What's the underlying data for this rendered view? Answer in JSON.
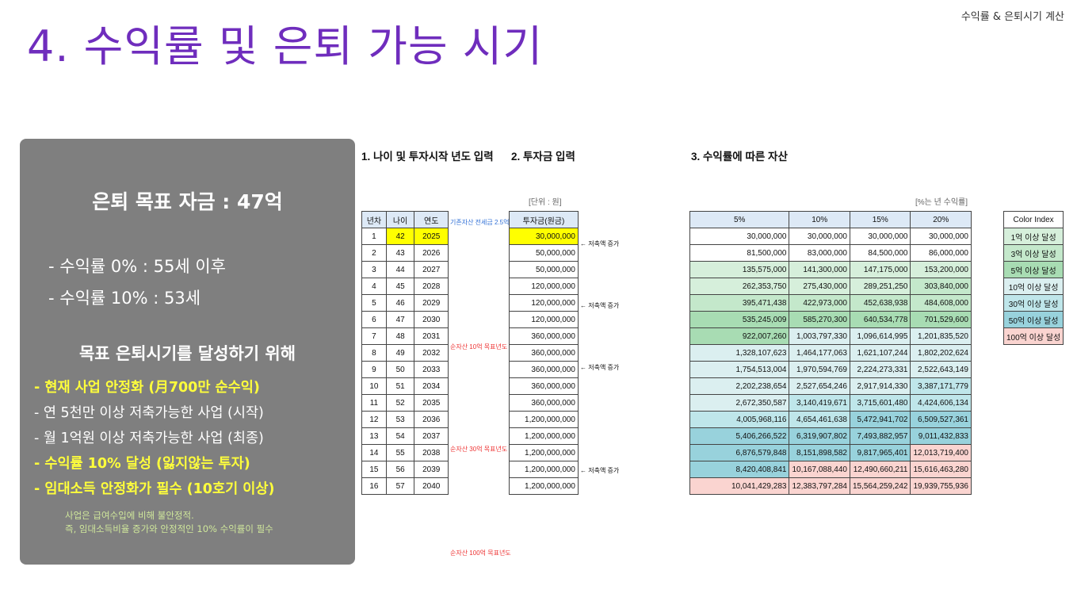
{
  "header": {
    "top_right": "수익률 & 은퇴시기 계산",
    "title": "4. 수익률 및 은퇴 가능 시기"
  },
  "panel": {
    "goal": "은퇴 목표 자금 : 47억",
    "rates": [
      "- 수익률   0% : 55세 이후",
      "- 수익률 10% : 53세"
    ],
    "subheading": "목표 은퇴시기를 달성하기 위해",
    "bullets": [
      {
        "text": "- 현재 사업 안정화 (月700만 순수익)",
        "highlight": true
      },
      {
        "text": "- 연 5천만 이상 저축가능한 사업 (시작)",
        "highlight": false
      },
      {
        "text": "- 월 1억원 이상 저축가능한 사업 (최종)",
        "highlight": false
      },
      {
        "text": "- 수익률 10% 달성 (잃지않는 투자)",
        "highlight": true
      },
      {
        "text": "- 임대소득 안정화가 필수 (10호기 이상)",
        "highlight": true
      }
    ],
    "notes": [
      "사업은 급여수입에 비해 불안정적.",
      "즉, 임대소득비율 증가와 안정적인 10% 수익률이 필수"
    ]
  },
  "sections": {
    "s1": "1. 나이 및 투자시작 년도 입력",
    "s2": "2. 투자금 입력",
    "s3": "3. 수익률에 따른 자산",
    "unit1": "[단위 : 원]",
    "unit2": "[%는 년 수익률]"
  },
  "left_table": {
    "headers": [
      "년차",
      "나이",
      "연도"
    ],
    "rows": [
      [
        "1",
        "42",
        "2025"
      ],
      [
        "2",
        "43",
        "2026"
      ],
      [
        "3",
        "44",
        "2027"
      ],
      [
        "4",
        "45",
        "2028"
      ],
      [
        "5",
        "46",
        "2029"
      ],
      [
        "6",
        "47",
        "2030"
      ],
      [
        "7",
        "48",
        "2031"
      ],
      [
        "8",
        "49",
        "2032"
      ],
      [
        "9",
        "50",
        "2033"
      ],
      [
        "10",
        "51",
        "2034"
      ],
      [
        "11",
        "52",
        "2035"
      ],
      [
        "12",
        "53",
        "2036"
      ],
      [
        "13",
        "54",
        "2037"
      ],
      [
        "14",
        "55",
        "2038"
      ],
      [
        "15",
        "56",
        "2039"
      ],
      [
        "16",
        "57",
        "2040"
      ]
    ]
  },
  "notes_col": {
    "row1": "기존자산 전세금 2.5억",
    "row6": "순자산 10억 목표년도",
    "row11": "순자산 30억 목표년도",
    "row16": "순자산 100억 목표년도"
  },
  "invest_table": {
    "header": "투자금(원금)",
    "values": [
      "30,000,000",
      "50,000,000",
      "50,000,000",
      "120,000,000",
      "120,000,000",
      "120,000,000",
      "360,000,000",
      "360,000,000",
      "360,000,000",
      "360,000,000",
      "360,000,000",
      "1,200,000,000",
      "1,200,000,000",
      "1,200,000,000",
      "1,200,000,000",
      "1,200,000,000"
    ]
  },
  "increase_note": "← 저축액 증가",
  "asset_table": {
    "headers": [
      "5%",
      "10%",
      "15%",
      "20%"
    ],
    "rows": [
      [
        "30,000,000",
        "30,000,000",
        "30,000,000",
        "30,000,000"
      ],
      [
        "81,500,000",
        "83,000,000",
        "84,500,000",
        "86,000,000"
      ],
      [
        "135,575,000",
        "141,300,000",
        "147,175,000",
        "153,200,000"
      ],
      [
        "262,353,750",
        "275,430,000",
        "289,251,250",
        "303,840,000"
      ],
      [
        "395,471,438",
        "422,973,000",
        "452,638,938",
        "484,608,000"
      ],
      [
        "535,245,009",
        "585,270,300",
        "640,534,778",
        "701,529,600"
      ],
      [
        "922,007,260",
        "1,003,797,330",
        "1,096,614,995",
        "1,201,835,520"
      ],
      [
        "1,328,107,623",
        "1,464,177,063",
        "1,621,107,244",
        "1,802,202,624"
      ],
      [
        "1,754,513,004",
        "1,970,594,769",
        "2,224,273,331",
        "2,522,643,149"
      ],
      [
        "2,202,238,654",
        "2,527,654,246",
        "2,917,914,330",
        "3,387,171,779"
      ],
      [
        "2,672,350,587",
        "3,140,419,671",
        "3,715,601,480",
        "4,424,606,134"
      ],
      [
        "4,005,968,116",
        "4,654,461,638",
        "5,472,941,702",
        "6,509,527,361"
      ],
      [
        "5,406,266,522",
        "6,319,907,802",
        "7,493,882,957",
        "9,011,432,833"
      ],
      [
        "6,876,579,848",
        "8,151,898,582",
        "9,817,965,401",
        "12,013,719,400"
      ],
      [
        "8,420,408,841",
        "10,167,088,440",
        "12,490,660,211",
        "15,616,463,280"
      ],
      [
        "10,041,429,283",
        "12,383,797,284",
        "15,564,259,242",
        "19,939,755,936"
      ]
    ]
  },
  "legend": {
    "header": "Color Index",
    "items": [
      {
        "label": "1억 이상 달성",
        "color": "#d6efdb"
      },
      {
        "label": "3억 이상 달성",
        "color": "#c4e8cb"
      },
      {
        "label": "5억 이상 달성",
        "color": "#a8dcb3"
      },
      {
        "label": "10억 이상 달성",
        "color": "#dbeff0"
      },
      {
        "label": "30억 이상 달성",
        "color": "#bfe6ea"
      },
      {
        "label": "50억 이상 달성",
        "color": "#98d2dc"
      },
      {
        "label": "100억 이상 달성",
        "color": "#fad4d0"
      }
    ]
  }
}
